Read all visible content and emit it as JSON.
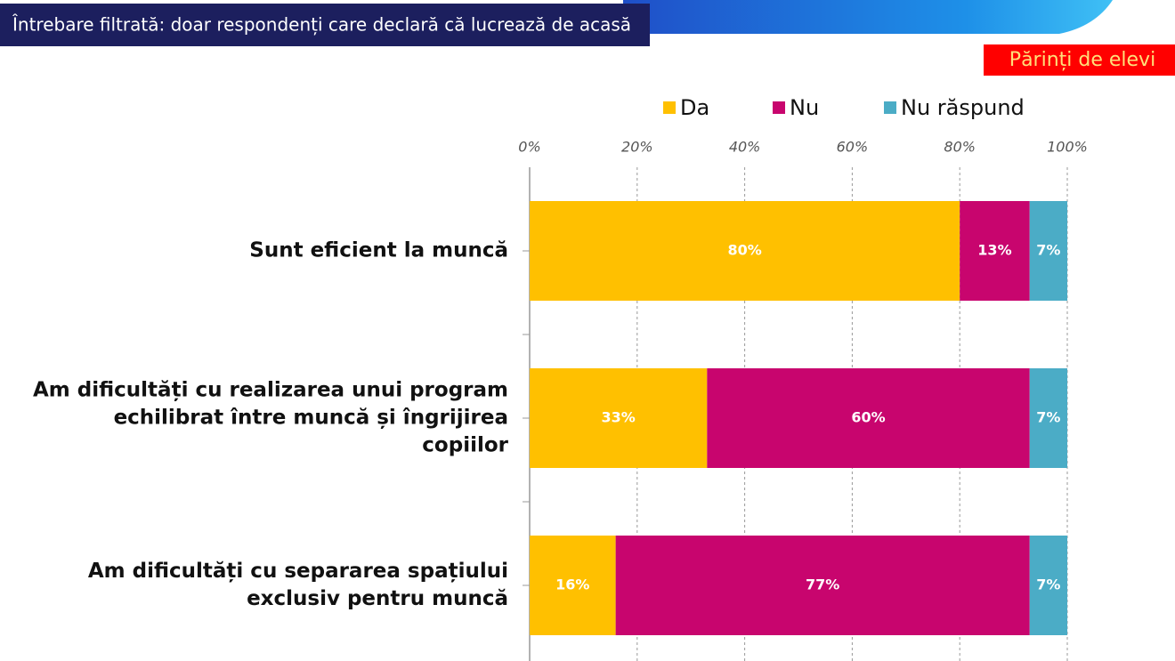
{
  "chart_data": {
    "type": "stacked_barh",
    "subtitle": "Întrebare filtrată: doar respondenți care declară că lucrează de acasă",
    "annotations": [
      "Părinți de elevi"
    ],
    "categories": [
      "Sunt eficient la muncă",
      "Am dificultăți cu realizarea unui program echilibrat între muncă și îngrijirea copiilor",
      "Am dificultăți cu separarea spațiului exclusiv pentru muncă"
    ],
    "series": [
      {
        "name": "Da",
        "color": "#FFC000",
        "values": [
          80,
          33,
          16
        ],
        "value_labels": [
          "80%",
          "33%",
          "16%"
        ]
      },
      {
        "name": "Nu",
        "color": "#C8056E",
        "values": [
          13,
          60,
          77
        ],
        "value_labels": [
          "13%",
          "60%",
          "77%"
        ]
      },
      {
        "name": "Nu răspund",
        "color": "#4BACC6",
        "values": [
          7,
          7,
          7
        ],
        "value_labels": [
          "7%",
          "7%",
          "7%"
        ]
      }
    ],
    "xlim": [
      0,
      100
    ],
    "xticks": [
      {
        "value": 0,
        "label": "0%"
      },
      {
        "value": 20,
        "label": "20%"
      },
      {
        "value": 40,
        "label": "40%"
      },
      {
        "value": 60,
        "label": "60%"
      },
      {
        "value": 80,
        "label": "80%"
      },
      {
        "value": 100,
        "label": "100%"
      }
    ],
    "grid": true,
    "legend": "top"
  }
}
